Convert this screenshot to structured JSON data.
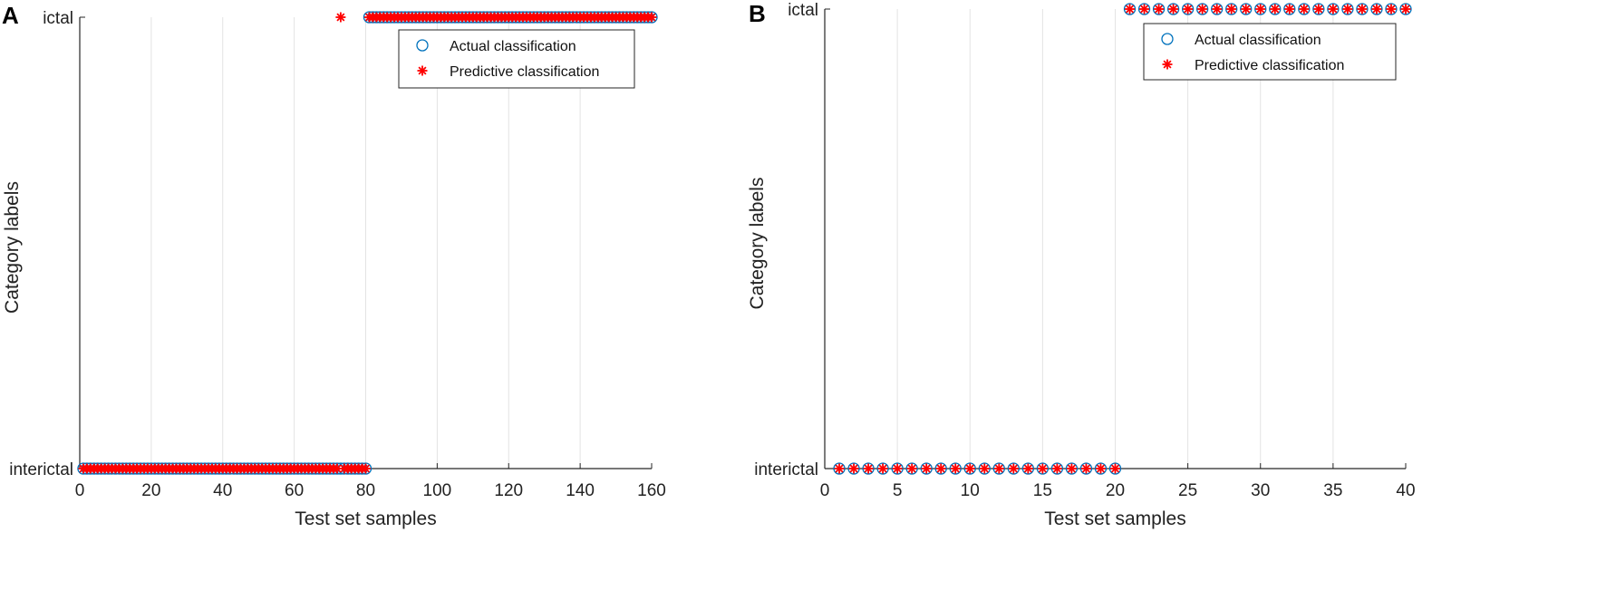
{
  "chart_data": [
    {
      "type": "scatter",
      "panel_label": "A",
      "xlabel": "Test set samples",
      "ylabel": "Category labels",
      "categories": [
        "interictal",
        "ictal"
      ],
      "xlim": [
        0,
        160
      ],
      "xticks": [
        0,
        20,
        40,
        60,
        80,
        100,
        120,
        140,
        160
      ],
      "grid": "vertical",
      "legend": {
        "placement": "top-right",
        "entries": [
          "Actual classification",
          "Predictive classification"
        ]
      },
      "series": [
        {
          "name": "Actual classification",
          "marker": "circle",
          "color": "#0072BD",
          "rule": "samples 1-80 interictal, 81-160 ictal",
          "n": 160,
          "split": 80,
          "exceptions": []
        },
        {
          "name": "Predictive classification",
          "marker": "asterisk",
          "color": "#FF0000",
          "rule": "samples 1-80 interictal (except 73 ictal), 81-160 ictal",
          "n": 160,
          "split": 80,
          "exceptions": [
            73
          ]
        }
      ]
    },
    {
      "type": "scatter",
      "panel_label": "B",
      "xlabel": "Test set samples",
      "ylabel": "Category labels",
      "categories": [
        "interictal",
        "ictal"
      ],
      "xlim": [
        0,
        40
      ],
      "xticks": [
        0,
        5,
        10,
        15,
        20,
        25,
        30,
        35,
        40
      ],
      "grid": "vertical",
      "legend": {
        "placement": "top-right",
        "entries": [
          "Actual classification",
          "Predictive classification"
        ]
      },
      "series": [
        {
          "name": "Actual classification",
          "marker": "circle",
          "color": "#0072BD",
          "n": 40,
          "split": 20,
          "exceptions": []
        },
        {
          "name": "Predictive classification",
          "marker": "asterisk",
          "color": "#FF0000",
          "n": 40,
          "split": 20,
          "exceptions": []
        }
      ]
    }
  ]
}
